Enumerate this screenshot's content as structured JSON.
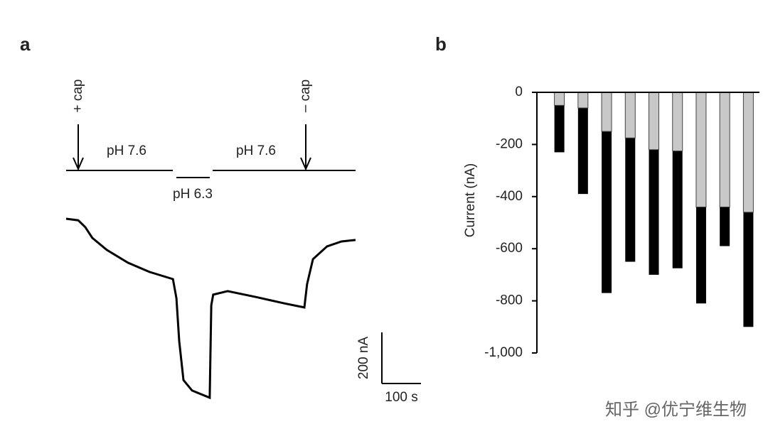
{
  "chart_data": [
    {
      "type": "line",
      "panel_label": "a",
      "x": [
        0,
        31,
        49,
        67,
        104,
        158,
        213,
        273,
        282,
        289,
        300,
        322,
        367,
        371,
        376,
        413,
        485,
        558,
        609,
        616,
        631,
        667,
        704,
        740
      ],
      "values": [
        0,
        -6,
        -33,
        -75,
        -122,
        -172,
        -208,
        -236,
        -311,
        -478,
        -631,
        -672,
        -700,
        -339,
        -297,
        -283,
        -306,
        -331,
        -347,
        -256,
        -158,
        -108,
        -89,
        -83
      ],
      "color": "#000000",
      "xlim": [
        0,
        740
      ],
      "ylim": [
        -700,
        0
      ],
      "annotations": [
        "+ cap",
        "– cap",
        "pH 7.6",
        "pH 6.3",
        "pH 7.6"
      ],
      "scale_bar": {
        "y_value": 200,
        "y_label": "200 nA",
        "x_value": 100,
        "x_label": "100 s"
      }
    },
    {
      "type": "bar",
      "panel_label": "b",
      "y_label": "Current (nA)",
      "series": [
        {
          "color": "#000000",
          "values": [
            -230,
            -390,
            -770,
            -650,
            -700,
            -675,
            -810,
            -590,
            -900
          ]
        },
        {
          "color": "#c8c8c8",
          "values": [
            -50,
            -60,
            -150,
            -175,
            -220,
            -225,
            -440,
            -440,
            -460
          ]
        }
      ],
      "ylim": [
        -1000,
        0
      ],
      "yticks": [
        0,
        -200,
        -400,
        -600,
        -800,
        {
          "value": -1000,
          "label": "-1,000"
        }
      ]
    }
  ],
  "watermark": "知乎 @优宁维生物"
}
